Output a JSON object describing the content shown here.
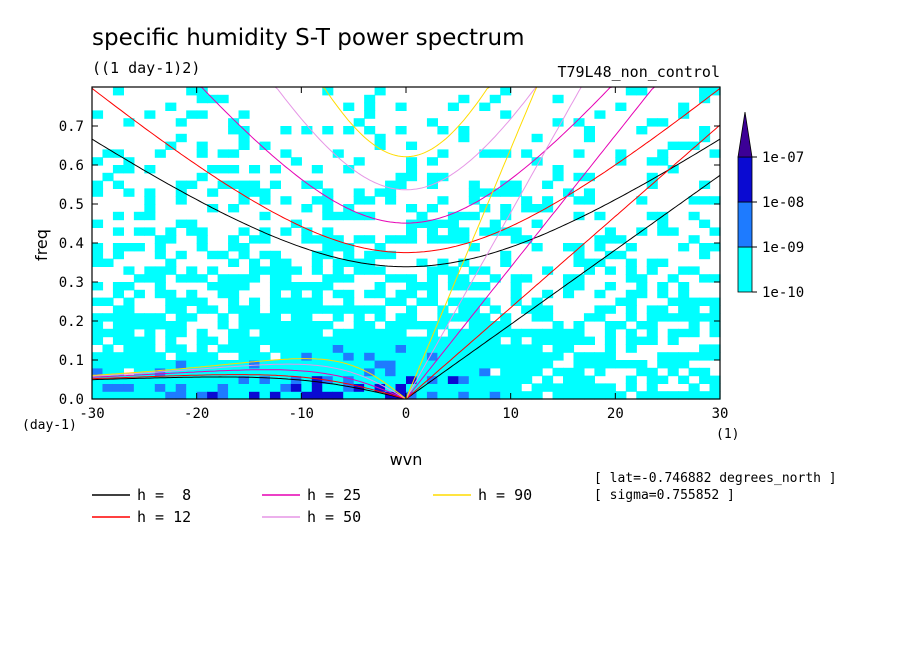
{
  "chart_data": {
    "type": "heatmap",
    "title": "specific humidity S-T power spectrum",
    "units_label": "((1 day-1)2)",
    "run_label": "T79L48_non_control",
    "xlabel": "wvn",
    "ylabel": "freq",
    "x_unit": "(1)",
    "y_unit": "(day-1)",
    "xlim": [
      -30,
      30
    ],
    "ylim": [
      0,
      0.8
    ],
    "xticks": [
      "-30",
      "-20",
      "-10",
      "0",
      "10",
      "20",
      "30"
    ],
    "yticks": [
      "0.0",
      "0.1",
      "0.2",
      "0.3",
      "0.4",
      "0.5",
      "0.6",
      "0.7"
    ],
    "colorbar": {
      "levels": [
        "1e-10",
        "1e-09",
        "1e-08",
        "1e-07"
      ],
      "colors": [
        "#00ffff",
        "#1e7bff",
        "#0a0ad2",
        "#3c0096"
      ]
    },
    "dispersion_curves": [
      {
        "h": "8",
        "color": "#000000"
      },
      {
        "h": "12",
        "color": "#ff0000"
      },
      {
        "h": "25",
        "color": "#e600b4"
      },
      {
        "h": "50",
        "color": "#e696e6"
      },
      {
        "h": "90",
        "color": "#ffdc00"
      }
    ],
    "legend_items": [
      {
        "label": "h =  8",
        "color": "#000000"
      },
      {
        "label": "h = 12",
        "color": "#ff0000"
      },
      {
        "label": "h = 25",
        "color": "#e600b4"
      },
      {
        "label": "h = 50",
        "color": "#e696e6"
      },
      {
        "label": "h = 90",
        "color": "#ffdc00"
      }
    ],
    "annotations": [
      "[ lat=-0.746882 degrees_north ]",
      "[ sigma=0.755852 ]"
    ]
  }
}
